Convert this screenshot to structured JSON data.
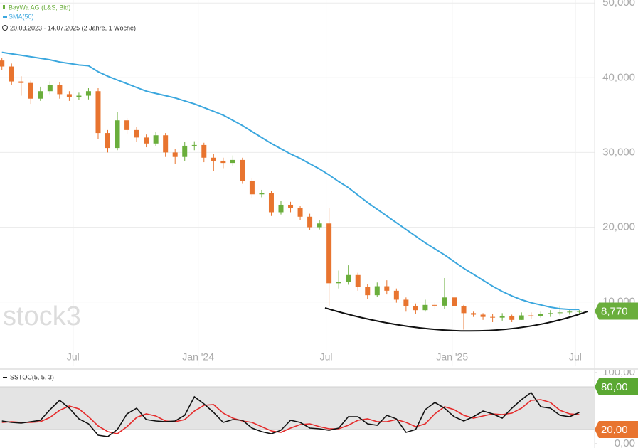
{
  "chart_data": [
    {
      "type": "candlestick",
      "watermark": "stock3",
      "period": "20.03.2023 - 14.07.2025 (2 Jahre, 1 Woche)",
      "xlim": [
        -0.2,
        61.6
      ],
      "xticks": [
        {
          "value": 7.4,
          "label": "Jul"
        },
        {
          "value": 20.4,
          "label": "Jan '24"
        },
        {
          "value": 33.7,
          "label": "Jul"
        },
        {
          "value": 46.8,
          "label": "Jan '25"
        },
        {
          "value": 59.6,
          "label": "Jul"
        }
      ],
      "ylim": [
        1.4,
        50.4
      ],
      "yticks": [
        {
          "value": 10,
          "label": "10,000"
        },
        {
          "value": 20,
          "label": "20,000"
        },
        {
          "value": 30,
          "label": "30,000"
        },
        {
          "value": 40,
          "label": "40,000"
        },
        {
          "value": 50,
          "label": "50,000"
        }
      ],
      "grid": true,
      "last_value_label": "8,770",
      "series": [
        {
          "name": "BayWa AG (L&S, Bid)",
          "up_color": "#6aae3c",
          "down_color": "#e8742f",
          "open": [
            42.3,
            41.5,
            39.5,
            39.3,
            37.2,
            38.2,
            39.0,
            37.8,
            37.4,
            37.6,
            38.2,
            32.6,
            30.6,
            34.3,
            33.0,
            32.0,
            31.2,
            32.3,
            30.0,
            29.4,
            30.9,
            31.0,
            29.3,
            28.9,
            28.6,
            29.0,
            26.2,
            24.4,
            24.6,
            22.0,
            23.0,
            22.6,
            21.4,
            20.0,
            20.5,
            12.5,
            12.7,
            13.6,
            12.0,
            10.9,
            12.1,
            11.5,
            10.3,
            9.4,
            8.9,
            9.6,
            9.5,
            10.6,
            9.4,
            8.5,
            8.3,
            8.0,
            7.9,
            8.1,
            7.6,
            8.2,
            8.1,
            8.4,
            8.5,
            8.6,
            8.7
          ],
          "high": [
            42.6,
            41.9,
            40.2,
            39.6,
            38.8,
            39.5,
            39.4,
            38.2,
            38.0,
            38.6,
            38.6,
            33.0,
            35.4,
            34.6,
            33.4,
            32.4,
            32.8,
            32.6,
            30.5,
            31.4,
            31.5,
            31.3,
            29.8,
            29.3,
            29.6,
            29.3,
            26.6,
            25.0,
            24.9,
            23.5,
            23.4,
            22.9,
            21.8,
            20.9,
            22.6,
            14.2,
            14.9,
            13.9,
            12.4,
            12.6,
            12.9,
            11.8,
            10.6,
            9.8,
            10.3,
            9.9,
            13.2,
            10.8,
            9.6,
            8.7,
            8.5,
            8.4,
            8.5,
            8.3,
            8.6,
            8.6,
            8.7,
            8.9,
            9.5,
            8.9,
            8.9
          ],
          "low": [
            41.0,
            39.0,
            37.6,
            36.5,
            36.9,
            37.8,
            37.2,
            36.9,
            37.0,
            37.1,
            31.8,
            30.0,
            30.3,
            32.5,
            31.4,
            30.7,
            30.8,
            29.4,
            28.5,
            28.9,
            30.3,
            28.7,
            27.5,
            27.9,
            28.2,
            25.8,
            23.9,
            24.0,
            21.5,
            21.7,
            22.0,
            21.0,
            19.6,
            19.7,
            9.4,
            11.8,
            12.3,
            11.5,
            10.4,
            10.7,
            11.0,
            9.9,
            8.7,
            8.4,
            8.7,
            9.0,
            9.1,
            8.9,
            6.3,
            8.0,
            7.6,
            7.3,
            7.5,
            7.3,
            7.6,
            7.7,
            7.9,
            8.0,
            8.2,
            8.3,
            8.4
          ],
          "close": [
            41.5,
            39.5,
            39.3,
            37.2,
            38.2,
            39.0,
            37.8,
            37.4,
            37.6,
            38.2,
            32.6,
            30.6,
            34.3,
            33.0,
            32.0,
            31.2,
            32.3,
            30.0,
            29.4,
            30.9,
            31.0,
            29.3,
            28.9,
            28.6,
            29.0,
            26.2,
            24.4,
            24.6,
            22.0,
            23.0,
            22.6,
            21.4,
            20.0,
            20.5,
            12.5,
            12.7,
            13.6,
            12.0,
            10.9,
            12.1,
            11.5,
            10.3,
            9.4,
            8.9,
            9.6,
            9.5,
            10.6,
            9.4,
            8.5,
            8.3,
            8.0,
            7.9,
            8.1,
            7.6,
            8.2,
            8.1,
            8.4,
            8.5,
            8.6,
            8.7,
            8.77
          ]
        },
        {
          "name": "SMA(50)",
          "color": "#3ba7de",
          "values": [
            43.4,
            43.2,
            43.0,
            42.8,
            42.6,
            42.4,
            42.1,
            41.9,
            41.7,
            41.6,
            40.8,
            40.2,
            39.7,
            39.2,
            38.7,
            38.2,
            37.9,
            37.6,
            37.3,
            36.9,
            36.5,
            36.0,
            35.5,
            35.0,
            34.3,
            33.6,
            32.8,
            32.0,
            31.2,
            30.5,
            29.8,
            29.2,
            28.5,
            27.8,
            27.0,
            26.1,
            25.3,
            24.3,
            23.3,
            22.4,
            21.5,
            20.6,
            19.7,
            18.8,
            17.9,
            17.1,
            16.3,
            15.4,
            14.5,
            13.7,
            12.9,
            12.1,
            11.4,
            10.8,
            10.3,
            9.9,
            9.6,
            9.3,
            9.1,
            9.0,
            9.0
          ]
        }
      ]
    },
    {
      "type": "line",
      "title": "SSTOC(5, 5, 3)",
      "xlim": [
        -0.2,
        61.6
      ],
      "ylim": [
        -6,
        104
      ],
      "yticks": [
        {
          "value": 0,
          "label": "0,00"
        },
        {
          "value": 100,
          "label": "100,00"
        }
      ],
      "band_ticks": [
        {
          "value": 80,
          "label": "80,00",
          "color": "#5aa832"
        },
        {
          "value": 20,
          "label": "20,00",
          "color": "#e8742f"
        }
      ],
      "series": [
        {
          "color": "#111111",
          "values": [
            32,
            30,
            29,
            31,
            33,
            48,
            61,
            50,
            35,
            28,
            12,
            10,
            20,
            42,
            50,
            34,
            32,
            31,
            32,
            40,
            66,
            56,
            44,
            30,
            34,
            33,
            22,
            17,
            14,
            19,
            33,
            30,
            22,
            21,
            19,
            22,
            38,
            38,
            28,
            26,
            40,
            35,
            16,
            20,
            48,
            58,
            50,
            38,
            32,
            38,
            46,
            42,
            36,
            50,
            62,
            72,
            52,
            50,
            40,
            38,
            44
          ]
        },
        {
          "color": "#e52b2b",
          "values": [
            30,
            31,
            30,
            30,
            31,
            37,
            47,
            53,
            49,
            38,
            25,
            17,
            14,
            24,
            37,
            42,
            39,
            32,
            31,
            34,
            46,
            54,
            55,
            43,
            36,
            32,
            30,
            24,
            18,
            16,
            22,
            27,
            28,
            24,
            21,
            21,
            26,
            33,
            35,
            31,
            31,
            34,
            30,
            24,
            28,
            42,
            52,
            48,
            40,
            36,
            39,
            42,
            41,
            43,
            50,
            61,
            62,
            58,
            47,
            42,
            41
          ]
        }
      ]
    }
  ]
}
